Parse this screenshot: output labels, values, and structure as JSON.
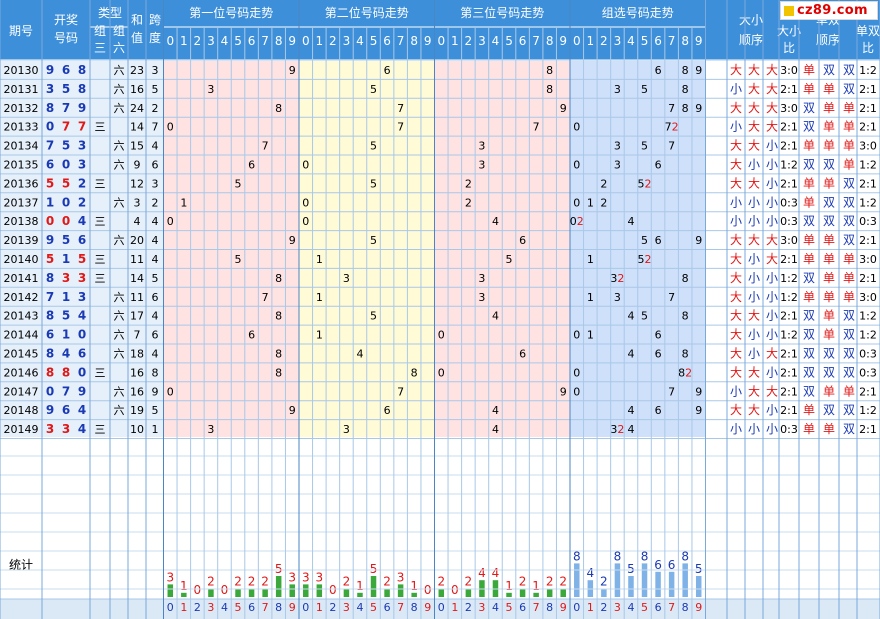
{
  "brand": {
    "text": "cz89.com"
  },
  "colors": {
    "header_bg": "#3d8fd9",
    "header_text": "#ffffff",
    "issue_bg": "#e6f0fa",
    "zone1_bg": "#ffe3e3",
    "zone2_bg": "#fffbd6",
    "zone3_bg": "#ffe3e3",
    "zone4_bg": "#cfe0fa",
    "grid": "#a9c8e8",
    "red": "#e01818",
    "blue": "#1a3ab5",
    "green_bar": "#3aa83a",
    "blue_bar": "#7fb2e6"
  },
  "headers": {
    "issue": "期号",
    "draw": "开奖号码",
    "type": "类型",
    "group3": "组三",
    "group6": "组六",
    "sum": "和值",
    "span": "跨度",
    "pos1": "第一位号码走势",
    "pos2": "第二位号码走势",
    "pos3": "第三位号码走势",
    "group": "组选号码走势",
    "size_order": "大小顺序",
    "size_ratio": "大小比",
    "parity_order": "单双顺序",
    "parity_ratio": "单双比",
    "digits": [
      "0",
      "1",
      "2",
      "3",
      "4",
      "5",
      "6",
      "7",
      "8",
      "9"
    ]
  },
  "labels": {
    "group3_mark": "三",
    "group6_mark": "六",
    "big": "大",
    "small": "小",
    "odd": "单",
    "even": "双"
  },
  "rows": [
    {
      "issue": "20130",
      "nums": [
        9,
        6,
        8
      ],
      "type": "六",
      "sum": 23,
      "span": 3,
      "group": [
        "6",
        "8",
        "9"
      ],
      "size": [
        "大",
        "大",
        "大"
      ],
      "size_ratio": "3:0",
      "parity": [
        "单",
        "双",
        "双"
      ],
      "parity_ratio": "1:2"
    },
    {
      "issue": "20131",
      "nums": [
        3,
        5,
        8
      ],
      "type": "六",
      "sum": 16,
      "span": 5,
      "group": [
        "3",
        "5",
        "8"
      ],
      "size": [
        "小",
        "大",
        "大"
      ],
      "size_ratio": "2:1",
      "parity": [
        "单",
        "单",
        "双"
      ],
      "parity_ratio": "2:1"
    },
    {
      "issue": "20132",
      "nums": [
        8,
        7,
        9
      ],
      "type": "六",
      "sum": 24,
      "span": 2,
      "group": [
        "7",
        "8",
        "9"
      ],
      "size": [
        "大",
        "大",
        "大"
      ],
      "size_ratio": "3:0",
      "parity": [
        "双",
        "单",
        "单"
      ],
      "parity_ratio": "2:1"
    },
    {
      "issue": "20133",
      "nums": [
        0,
        7,
        7
      ],
      "type": "三",
      "sum": 14,
      "span": 7,
      "group": [
        "0",
        "72"
      ],
      "size": [
        "小",
        "大",
        "大"
      ],
      "size_ratio": "2:1",
      "parity": [
        "双",
        "单",
        "单"
      ],
      "parity_ratio": "2:1"
    },
    {
      "issue": "20134",
      "nums": [
        7,
        5,
        3
      ],
      "type": "六",
      "sum": 15,
      "span": 4,
      "group": [
        "3",
        "5",
        "7"
      ],
      "size": [
        "大",
        "大",
        "小"
      ],
      "size_ratio": "2:1",
      "parity": [
        "单",
        "单",
        "单"
      ],
      "parity_ratio": "3:0"
    },
    {
      "issue": "20135",
      "nums": [
        6,
        0,
        3
      ],
      "type": "六",
      "sum": 9,
      "span": 6,
      "group": [
        "0",
        "3",
        "6"
      ],
      "size": [
        "大",
        "小",
        "小"
      ],
      "size_ratio": "1:2",
      "parity": [
        "双",
        "双",
        "单"
      ],
      "parity_ratio": "1:2"
    },
    {
      "issue": "20136",
      "nums": [
        5,
        5,
        2
      ],
      "type": "三",
      "sum": 12,
      "span": 3,
      "group": [
        "2",
        "52"
      ],
      "size": [
        "大",
        "大",
        "小"
      ],
      "size_ratio": "2:1",
      "parity": [
        "单",
        "单",
        "双"
      ],
      "parity_ratio": "2:1"
    },
    {
      "issue": "20137",
      "nums": [
        1,
        0,
        2
      ],
      "type": "六",
      "sum": 3,
      "span": 2,
      "group": [
        "0",
        "1",
        "2"
      ],
      "size": [
        "小",
        "小",
        "小"
      ],
      "size_ratio": "0:3",
      "parity": [
        "单",
        "双",
        "双"
      ],
      "parity_ratio": "1:2"
    },
    {
      "issue": "20138",
      "nums": [
        0,
        0,
        4
      ],
      "type": "三",
      "sum": 4,
      "span": 4,
      "group": [
        "02",
        "4"
      ],
      "size": [
        "小",
        "小",
        "小"
      ],
      "size_ratio": "0:3",
      "parity": [
        "双",
        "双",
        "双"
      ],
      "parity_ratio": "0:3"
    },
    {
      "issue": "20139",
      "nums": [
        9,
        5,
        6
      ],
      "type": "六",
      "sum": 20,
      "span": 4,
      "group": [
        "5",
        "6",
        "9"
      ],
      "size": [
        "大",
        "大",
        "大"
      ],
      "size_ratio": "3:0",
      "parity": [
        "单",
        "单",
        "双"
      ],
      "parity_ratio": "2:1"
    },
    {
      "issue": "20140",
      "nums": [
        5,
        1,
        5
      ],
      "type": "三",
      "sum": 11,
      "span": 4,
      "group": [
        "1",
        "52"
      ],
      "size": [
        "大",
        "小",
        "大"
      ],
      "size_ratio": "2:1",
      "parity": [
        "单",
        "单",
        "单"
      ],
      "parity_ratio": "3:0"
    },
    {
      "issue": "20141",
      "nums": [
        8,
        3,
        3
      ],
      "type": "三",
      "sum": 14,
      "span": 5,
      "group": [
        "32",
        "8"
      ],
      "size": [
        "大",
        "小",
        "小"
      ],
      "size_ratio": "1:2",
      "parity": [
        "双",
        "单",
        "单"
      ],
      "parity_ratio": "2:1"
    },
    {
      "issue": "20142",
      "nums": [
        7,
        1,
        3
      ],
      "type": "六",
      "sum": 11,
      "span": 6,
      "group": [
        "1",
        "3",
        "7"
      ],
      "size": [
        "大",
        "小",
        "小"
      ],
      "size_ratio": "1:2",
      "parity": [
        "单",
        "单",
        "单"
      ],
      "parity_ratio": "3:0"
    },
    {
      "issue": "20143",
      "nums": [
        8,
        5,
        4
      ],
      "type": "六",
      "sum": 17,
      "span": 4,
      "group": [
        "4",
        "5",
        "8"
      ],
      "size": [
        "大",
        "大",
        "小"
      ],
      "size_ratio": "2:1",
      "parity": [
        "双",
        "单",
        "双"
      ],
      "parity_ratio": "1:2"
    },
    {
      "issue": "20144",
      "nums": [
        6,
        1,
        0
      ],
      "type": "六",
      "sum": 7,
      "span": 6,
      "group": [
        "0",
        "1",
        "6"
      ],
      "size": [
        "大",
        "小",
        "小"
      ],
      "size_ratio": "1:2",
      "parity": [
        "双",
        "单",
        "双"
      ],
      "parity_ratio": "1:2"
    },
    {
      "issue": "20145",
      "nums": [
        8,
        4,
        6
      ],
      "type": "六",
      "sum": 18,
      "span": 4,
      "group": [
        "4",
        "6",
        "8"
      ],
      "size": [
        "大",
        "小",
        "大"
      ],
      "size_ratio": "2:1",
      "parity": [
        "双",
        "双",
        "双"
      ],
      "parity_ratio": "0:3"
    },
    {
      "issue": "20146",
      "nums": [
        8,
        8,
        0
      ],
      "type": "三",
      "sum": 16,
      "span": 8,
      "group": [
        "0",
        "82"
      ],
      "size": [
        "大",
        "大",
        "小"
      ],
      "size_ratio": "2:1",
      "parity": [
        "双",
        "双",
        "双"
      ],
      "parity_ratio": "0:3"
    },
    {
      "issue": "20147",
      "nums": [
        0,
        7,
        9
      ],
      "type": "六",
      "sum": 16,
      "span": 9,
      "group": [
        "0",
        "7",
        "9"
      ],
      "size": [
        "小",
        "大",
        "大"
      ],
      "size_ratio": "2:1",
      "parity": [
        "双",
        "单",
        "单"
      ],
      "parity_ratio": "2:1"
    },
    {
      "issue": "20148",
      "nums": [
        9,
        6,
        4
      ],
      "type": "六",
      "sum": 19,
      "span": 5,
      "group": [
        "4",
        "6",
        "9"
      ],
      "size": [
        "大",
        "大",
        "小"
      ],
      "size_ratio": "2:1",
      "parity": [
        "单",
        "双",
        "双"
      ],
      "parity_ratio": "1:2"
    },
    {
      "issue": "20149",
      "nums": [
        3,
        3,
        4
      ],
      "type": "三",
      "sum": 10,
      "span": 1,
      "group": [
        "32",
        "4"
      ],
      "size": [
        "小",
        "小",
        "小"
      ],
      "size_ratio": "0:3",
      "parity": [
        "单",
        "单",
        "双"
      ],
      "parity_ratio": "2:1"
    }
  ],
  "stats": {
    "label": "统计",
    "pos1": [
      3,
      1,
      0,
      2,
      0,
      2,
      2,
      2,
      5,
      3
    ],
    "pos2": [
      3,
      3,
      0,
      2,
      1,
      5,
      2,
      3,
      1,
      0
    ],
    "pos3": [
      2,
      0,
      2,
      4,
      4,
      1,
      2,
      1,
      2,
      2
    ],
    "group": [
      8,
      4,
      2,
      8,
      5,
      8,
      6,
      6,
      8,
      5
    ]
  }
}
